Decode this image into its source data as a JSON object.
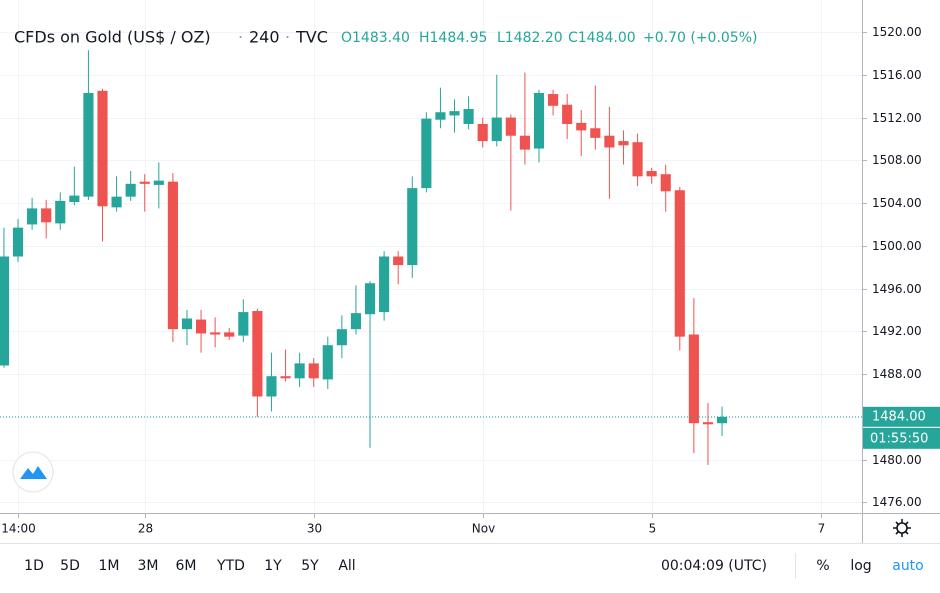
{
  "chart_data": {
    "type": "candlestick",
    "title": "CFDs on Gold (US$ / OZ)",
    "interval": "240",
    "source": "TVC",
    "ohlc_legend": [
      "O1483.40",
      "H1484.95",
      "L1482.20",
      "C1484.00",
      "+0.70 (+0.05%)"
    ],
    "up_color": "#26a69a",
    "down_color": "#ef5350",
    "open": [
      1488.8,
      1499,
      1502,
      1503.5,
      1502.1,
      1504.1,
      1504.6,
      1514.5,
      1503.6,
      1504.6,
      1506,
      1505.7,
      1506,
      1492.2,
      1493.1,
      1491.9,
      1491.9,
      1491.6,
      1493.9,
      1485.9,
      1487.8,
      1487.6,
      1489,
      1487.5,
      1490.7,
      1492.2,
      1493.6,
      1493.8,
      1499,
      1498.2,
      1505.4,
      1511.8,
      1512.2,
      1511.4,
      1511.4,
      1509.8,
      1512,
      1510.3,
      1509.1,
      1514.2,
      1513.2,
      1511.5,
      1511,
      1510.3,
      1509.8,
      1509.7,
      1507,
      1506.7,
      1505.2,
      1491.7,
      1483.5,
      1483.4
    ],
    "high": [
      1501.7,
      1502.5,
      1504.5,
      1504.3,
      1505,
      1507.4,
      1518.3,
      1514.7,
      1506.5,
      1507,
      1506.7,
      1507.8,
      1506.8,
      1494,
      1494,
      1493.3,
      1492.3,
      1495,
      1494.1,
      1490,
      1490.3,
      1490,
      1489.5,
      1491.5,
      1493.5,
      1496.3,
      1496.7,
      1499.5,
      1499.5,
      1506.5,
      1512.5,
      1514.8,
      1513.7,
      1514,
      1512,
      1516,
      1512.3,
      1516.2,
      1514.6,
      1514.6,
      1514.2,
      1512.7,
      1515,
      1513,
      1510.8,
      1510.5,
      1507.3,
      1507.6,
      1505.5,
      1495.1,
      1485.3,
      1484.95
    ],
    "low": [
      1488.6,
      1498.5,
      1501.5,
      1500.7,
      1501.5,
      1503.8,
      1504.3,
      1500.4,
      1503.2,
      1504.2,
      1503.2,
      1503.5,
      1491,
      1490.7,
      1490,
      1490.5,
      1491.2,
      1491,
      1484,
      1484.5,
      1487.3,
      1486.8,
      1486.8,
      1486.6,
      1489.5,
      1491.7,
      1481.1,
      1493,
      1496.4,
      1497,
      1505,
      1511,
      1510.6,
      1510.9,
      1509.2,
      1509.3,
      1503.3,
      1507.6,
      1507.8,
      1512.2,
      1510,
      1508.4,
      1509,
      1504.4,
      1507.6,
      1505.6,
      1505.8,
      1503.2,
      1490.2,
      1480.6,
      1479.5,
      1482.2
    ],
    "close": [
      1499,
      1501.7,
      1503.5,
      1502.2,
      1504.2,
      1504.7,
      1514.3,
      1503.7,
      1504.6,
      1505.8,
      1505.8,
      1506.1,
      1492.2,
      1493.2,
      1491.8,
      1491.7,
      1491.5,
      1493.8,
      1485.9,
      1487.8,
      1487.6,
      1489,
      1487.6,
      1490.7,
      1492.2,
      1493.7,
      1496.5,
      1499,
      1498.2,
      1505.4,
      1511.9,
      1512.5,
      1512.6,
      1512.8,
      1509.8,
      1512,
      1510.3,
      1509,
      1514.3,
      1513.1,
      1511.4,
      1510.8,
      1510.1,
      1509.2,
      1509.4,
      1506.5,
      1506.5,
      1505.1,
      1491.5,
      1483.4,
      1483.3,
      1484
    ],
    "xlim": [
      -0.28,
      60.94
    ],
    "xticks": [
      {
        "value": 1,
        "label": "14:00"
      },
      {
        "value": 10,
        "label": "28"
      },
      {
        "value": 22,
        "label": "30"
      },
      {
        "value": 34,
        "label": "Nov"
      },
      {
        "value": 46,
        "label": "5"
      },
      {
        "value": 58,
        "label": "7"
      }
    ],
    "ylim": [
      1475,
      1523
    ],
    "yticks": [
      {
        "value": 1476,
        "label": "1476.00"
      },
      {
        "value": 1480,
        "label": "1480.00"
      },
      {
        "value": 1484,
        "label": "1484.00"
      },
      {
        "value": 1488,
        "label": "1488.00"
      },
      {
        "value": 1492,
        "label": "1492.00"
      },
      {
        "value": 1496,
        "label": "1496.00"
      },
      {
        "value": 1500,
        "label": "1500.00"
      },
      {
        "value": 1504,
        "label": "1504.00"
      },
      {
        "value": 1508,
        "label": "1508.00"
      },
      {
        "value": 1512,
        "label": "1512.00"
      },
      {
        "value": 1516,
        "label": "1516.00"
      },
      {
        "value": 1520,
        "label": "1520.00"
      }
    ],
    "grid": true,
    "last_price": {
      "value": 1484,
      "label": "1484.00"
    },
    "countdown": "01:55:50",
    "toolbar": {
      "ranges": [
        "1D",
        "5D",
        "1M",
        "3M",
        "6M",
        "YTD",
        "1Y",
        "5Y",
        "All"
      ],
      "clock": "00:04:09 (UTC)",
      "percent": "%",
      "log": "log",
      "auto": "auto"
    }
  }
}
